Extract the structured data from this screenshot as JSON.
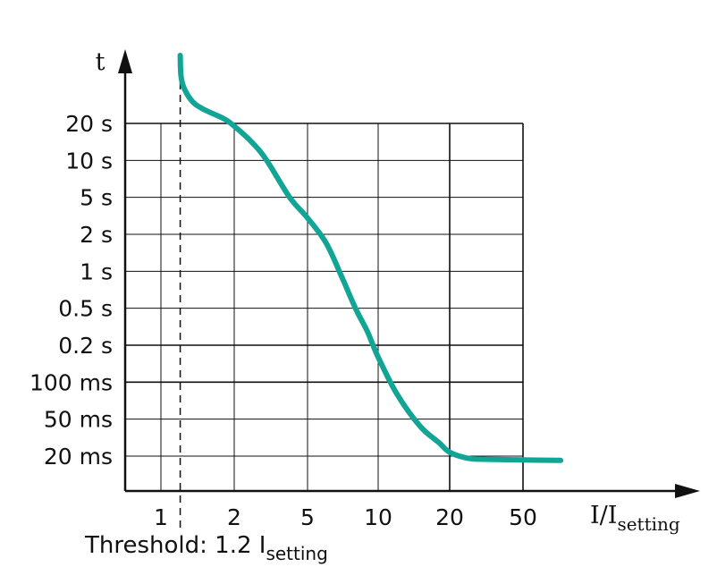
{
  "chart_data": {
    "type": "line",
    "title": "",
    "xlabel": {
      "main": "I/I",
      "sub": "setting"
    },
    "ylabel": "t",
    "x_ticks": [
      "1",
      "2",
      "5",
      "10",
      "20",
      "50"
    ],
    "y_ticks": [
      "20 s",
      "10 s",
      "5 s",
      "2 s",
      "1 s",
      "0.5 s",
      "0.2 s",
      "100 ms",
      "50 ms",
      "20 ms"
    ],
    "grid": true,
    "annotation": {
      "prefix": "Threshold: 1.2 I",
      "sub": "setting"
    },
    "threshold": 1.2,
    "series": [
      {
        "name": "",
        "color": "#12a595",
        "points": [
          [
            1.2,
            100
          ],
          [
            1.21,
            48
          ],
          [
            1.25,
            38
          ],
          [
            1.35,
            30
          ],
          [
            1.5,
            26
          ],
          [
            1.8,
            22
          ],
          [
            2.0,
            19
          ],
          [
            2.5,
            14
          ],
          [
            3,
            10
          ],
          [
            4,
            5
          ],
          [
            5,
            3
          ],
          [
            6,
            1.7
          ],
          [
            7,
            0.9
          ],
          [
            8,
            0.5
          ],
          [
            9,
            0.28
          ],
          [
            10,
            0.16
          ],
          [
            12,
            0.08
          ],
          [
            15,
            0.042
          ],
          [
            18,
            0.028
          ],
          [
            20,
            0.022
          ],
          [
            25,
            0.019
          ],
          [
            30,
            0.0185
          ],
          [
            50,
            0.0182
          ],
          [
            80,
            0.018
          ]
        ]
      }
    ]
  }
}
